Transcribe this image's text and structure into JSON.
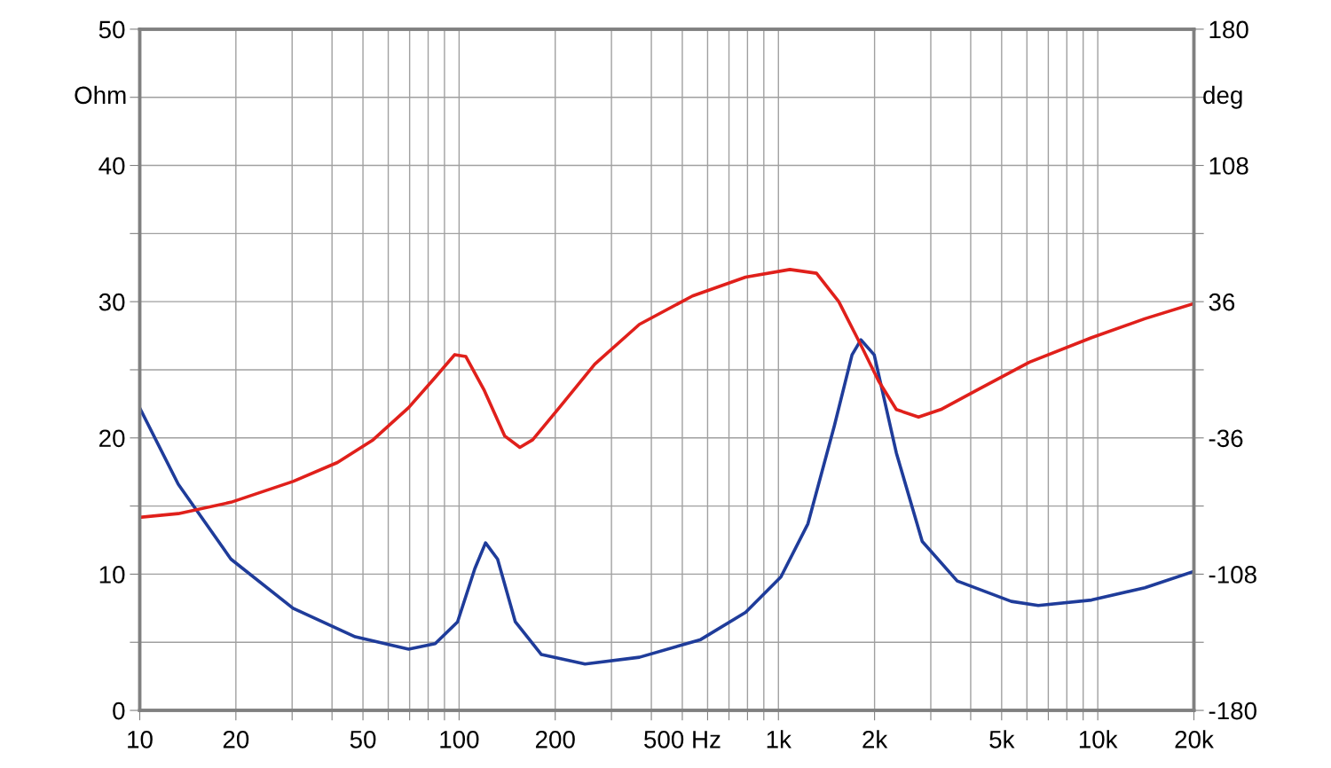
{
  "chart_data": {
    "type": "line",
    "ylabel": "Ohm",
    "y2label": "deg",
    "log": "x",
    "grid": true,
    "legend": false,
    "xlim": [
      10,
      20000
    ],
    "ylim": [
      0,
      50
    ],
    "y2lim": [
      -180,
      180
    ],
    "xticks": [
      10,
      20,
      {
        "value": 30,
        "label": null
      },
      {
        "value": 40,
        "label": null
      },
      50,
      {
        "value": 60,
        "label": null
      },
      {
        "value": 70,
        "label": null
      },
      {
        "value": 80,
        "label": null
      },
      {
        "value": 90,
        "label": null
      },
      100,
      200,
      {
        "value": 300,
        "label": null
      },
      {
        "value": 400,
        "label": null
      },
      {
        "value": 500,
        "label": "500 Hz"
      },
      {
        "value": 600,
        "label": null
      },
      {
        "value": 700,
        "label": null
      },
      {
        "value": 800,
        "label": null
      },
      {
        "value": 900,
        "label": null
      },
      {
        "value": 1000,
        "label": "1k"
      },
      {
        "value": 2000,
        "label": "2k"
      },
      {
        "value": 3000,
        "label": null
      },
      {
        "value": 4000,
        "label": null
      },
      {
        "value": 5000,
        "label": "5k"
      },
      {
        "value": 6000,
        "label": null
      },
      {
        "value": 7000,
        "label": null
      },
      {
        "value": 8000,
        "label": null
      },
      {
        "value": 9000,
        "label": null
      },
      {
        "value": 10000,
        "label": "10k"
      },
      {
        "value": 20000,
        "label": "20k"
      }
    ],
    "yticks": [
      0,
      {
        "value": 5,
        "label": null
      },
      10,
      {
        "value": 15,
        "label": null
      },
      20,
      {
        "value": 25,
        "label": null
      },
      30,
      {
        "value": 35,
        "label": null
      },
      40,
      {
        "value": 45,
        "label": null
      },
      50
    ],
    "y2ticks": [
      -180,
      {
        "value": -144,
        "label": null
      },
      -108,
      {
        "value": -72,
        "label": null
      },
      -36,
      {
        "value": 0,
        "label": null
      },
      36,
      {
        "value": 72,
        "label": null
      },
      108,
      {
        "value": 144,
        "label": null
      },
      180
    ],
    "series": [
      {
        "color": "#1f3c9a",
        "x": [
          10,
          13.2,
          19.3,
          30.2,
          47.3,
          69.5,
          84.2,
          98.9,
          112,
          121,
          132,
          150,
          181,
          248,
          367,
          571,
          789,
          1018,
          1237,
          1497,
          1700,
          1813,
          1995,
          2340,
          2820,
          3630,
          5360,
          6510,
          9560,
          14040,
          20000
        ],
        "values": [
          22.2,
          16.6,
          11.1,
          7.5,
          5.4,
          4.5,
          4.9,
          6.5,
          10.4,
          12.3,
          11.1,
          6.5,
          4.1,
          3.4,
          3.9,
          5.2,
          7.2,
          9.8,
          13.7,
          20.9,
          26.1,
          27.2,
          26.1,
          18.9,
          12.4,
          9.5,
          8.0,
          7.7,
          8.1,
          9.0,
          10.2
        ]
      },
      {
        "color": "#e0201b",
        "axis": "y2",
        "x": [
          10,
          13.2,
          19.3,
          30.2,
          41.6,
          53.8,
          69.5,
          84.2,
          96.9,
          105,
          120,
          139,
          155,
          170,
          206,
          266,
          367,
          538,
          789,
          1086,
          1316,
          1545,
          1813,
          2060,
          2340,
          2746,
          3224,
          4160,
          6110,
          9560,
          14040,
          20000
        ],
        "values": [
          -78,
          -76,
          -70,
          -59,
          -49,
          -37,
          -20,
          -4,
          8,
          7,
          -11,
          -35,
          -41,
          -37,
          -20,
          3,
          24,
          39,
          49,
          53,
          51,
          36,
          13,
          -6,
          -21,
          -25,
          -21,
          -11,
          4,
          17,
          27,
          35
        ]
      }
    ]
  }
}
